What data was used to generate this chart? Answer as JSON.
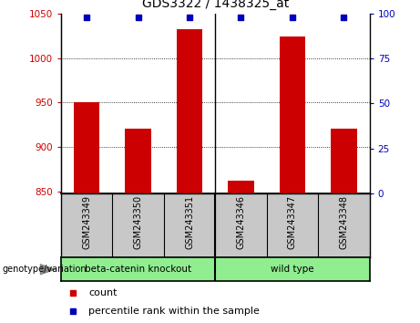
{
  "title": "GDS3322 / 1438325_at",
  "samples": [
    "GSM243349",
    "GSM243350",
    "GSM243351",
    "GSM243346",
    "GSM243347",
    "GSM243348"
  ],
  "counts": [
    950,
    921,
    1033,
    862,
    1025,
    921
  ],
  "percentile_ranks": [
    98,
    98,
    98,
    98,
    98,
    98
  ],
  "group_labels": [
    "beta-catenin knockout",
    "wild type"
  ],
  "group_colors": [
    "#90EE90",
    "#90EE90"
  ],
  "group_boundary": 2.5,
  "ylim_left": [
    848,
    1050
  ],
  "ylim_right": [
    0,
    100
  ],
  "yticks_left": [
    850,
    900,
    950,
    1000,
    1050
  ],
  "yticks_right": [
    0,
    25,
    50,
    75,
    100
  ],
  "bar_color": "#CC0000",
  "dot_color": "#0000BB",
  "bar_width": 0.5,
  "grid_yticks": [
    900,
    950,
    1000
  ],
  "sample_bg_color": "#C8C8C8",
  "left_tick_color": "#CC0000",
  "right_tick_color": "#0000BB",
  "legend_count_color": "#CC0000",
  "legend_pct_color": "#0000BB"
}
